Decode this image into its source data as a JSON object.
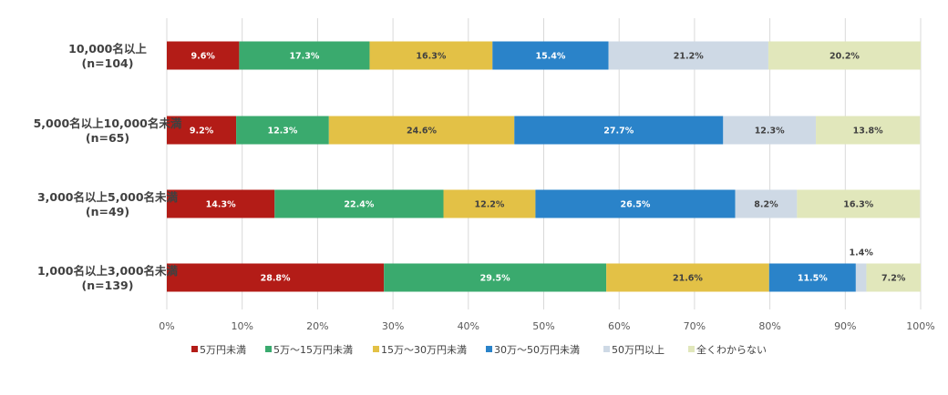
{
  "chart_data": {
    "type": "bar",
    "orientation": "horizontal",
    "stacked": "percent",
    "categories": [
      "10,000名以上\n(n=104)",
      "5,000名以上10,000名未満\n(n=65)",
      "3,000名以上5,000名未満\n(n=49)",
      "1,000名以上3,000名未満\n(n=139)"
    ],
    "series": [
      {
        "name": "5万円未満",
        "color": "#b31c17",
        "label_color": "#ffffff",
        "values": [
          9.6,
          9.2,
          14.3,
          28.8
        ]
      },
      {
        "name": "5万～15万円未満",
        "color": "#3aaa6e",
        "label_color": "#ffffff",
        "values": [
          17.3,
          12.3,
          22.4,
          29.5
        ]
      },
      {
        "name": "15万～30万円未満",
        "color": "#e3c146",
        "label_color": "#404040",
        "values": [
          16.3,
          24.6,
          12.2,
          21.6
        ]
      },
      {
        "name": "30万～50万円未満",
        "color": "#2a83c9",
        "label_color": "#ffffff",
        "values": [
          15.4,
          27.7,
          26.5,
          11.5
        ]
      },
      {
        "name": "50万円以上",
        "color": "#ced9e5",
        "label_color": "#404040",
        "values": [
          21.2,
          12.3,
          8.2,
          1.4
        ]
      },
      {
        "name": "全くわからない",
        "color": "#e1e7bb",
        "label_color": "#404040",
        "values": [
          20.2,
          13.8,
          16.3,
          7.2
        ]
      }
    ],
    "value_labels": [
      [
        "9.6%",
        "17.3%",
        "16.3%",
        "15.4%",
        "21.2%",
        "20.2%"
      ],
      [
        "9.2%",
        "12.3%",
        "24.6%",
        "27.7%",
        "12.3%",
        "13.8%"
      ],
      [
        "14.3%",
        "22.4%",
        "12.2%",
        "26.5%",
        "8.2%",
        "16.3%"
      ],
      [
        "28.8%",
        "29.5%",
        "21.6%",
        "11.5%",
        "1.4%",
        "7.2%"
      ]
    ],
    "xlim": [
      0,
      100
    ],
    "x_ticks": [
      "0%",
      "10%",
      "20%",
      "30%",
      "40%",
      "50%",
      "60%",
      "70%",
      "80%",
      "90%",
      "100%"
    ],
    "grid": "vertical",
    "legend_position": "bottom-left"
  }
}
